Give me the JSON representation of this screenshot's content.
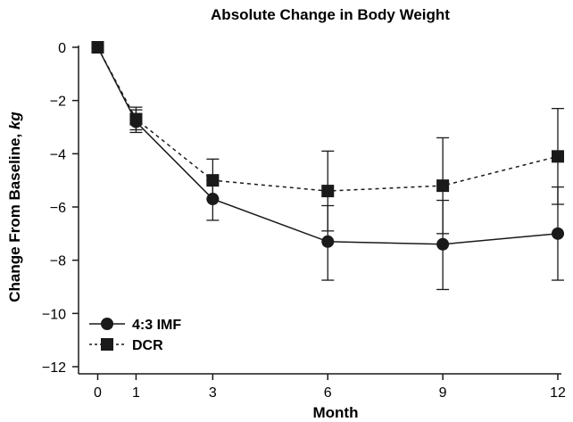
{
  "chart_data": {
    "type": "line",
    "title": "Absolute Change in Body Weight",
    "xlabel": "Month",
    "ylabel_main": "Change From Baseline, ",
    "ylabel_unit": "kg",
    "xlim": [
      -0.5,
      12
    ],
    "ylim": [
      -12,
      0
    ],
    "x_ticks": [
      0,
      1,
      3,
      6,
      9,
      12
    ],
    "y_ticks": [
      0,
      -2,
      -4,
      -6,
      -8,
      -10,
      -12
    ],
    "y_tick_labels": [
      "0",
      "−2",
      "−4",
      "−6",
      "−8",
      "−10",
      "−12"
    ],
    "x": [
      0,
      1,
      3,
      6,
      9,
      12
    ],
    "grid": false,
    "legend_position": "bottom-left",
    "series": [
      {
        "name": "4:3 IMF",
        "marker": "circle",
        "line_style": "solid",
        "values": [
          0,
          -2.8,
          -5.7,
          -7.3,
          -7.4,
          -7.0
        ],
        "error_low": [
          0,
          -3.2,
          -6.5,
          -8.75,
          -9.1,
          -8.75
        ],
        "error_high": [
          0,
          -2.35,
          -5.0,
          -5.95,
          -5.75,
          -5.25
        ]
      },
      {
        "name": "DCR",
        "marker": "square",
        "line_style": "dashed",
        "values": [
          0,
          -2.7,
          -5.0,
          -5.4,
          -5.2,
          -4.1
        ],
        "error_low": [
          0,
          -3.1,
          -5.7,
          -6.9,
          -7.0,
          -5.9
        ],
        "error_high": [
          0,
          -2.25,
          -4.2,
          -3.9,
          -3.4,
          -2.3
        ]
      }
    ]
  }
}
